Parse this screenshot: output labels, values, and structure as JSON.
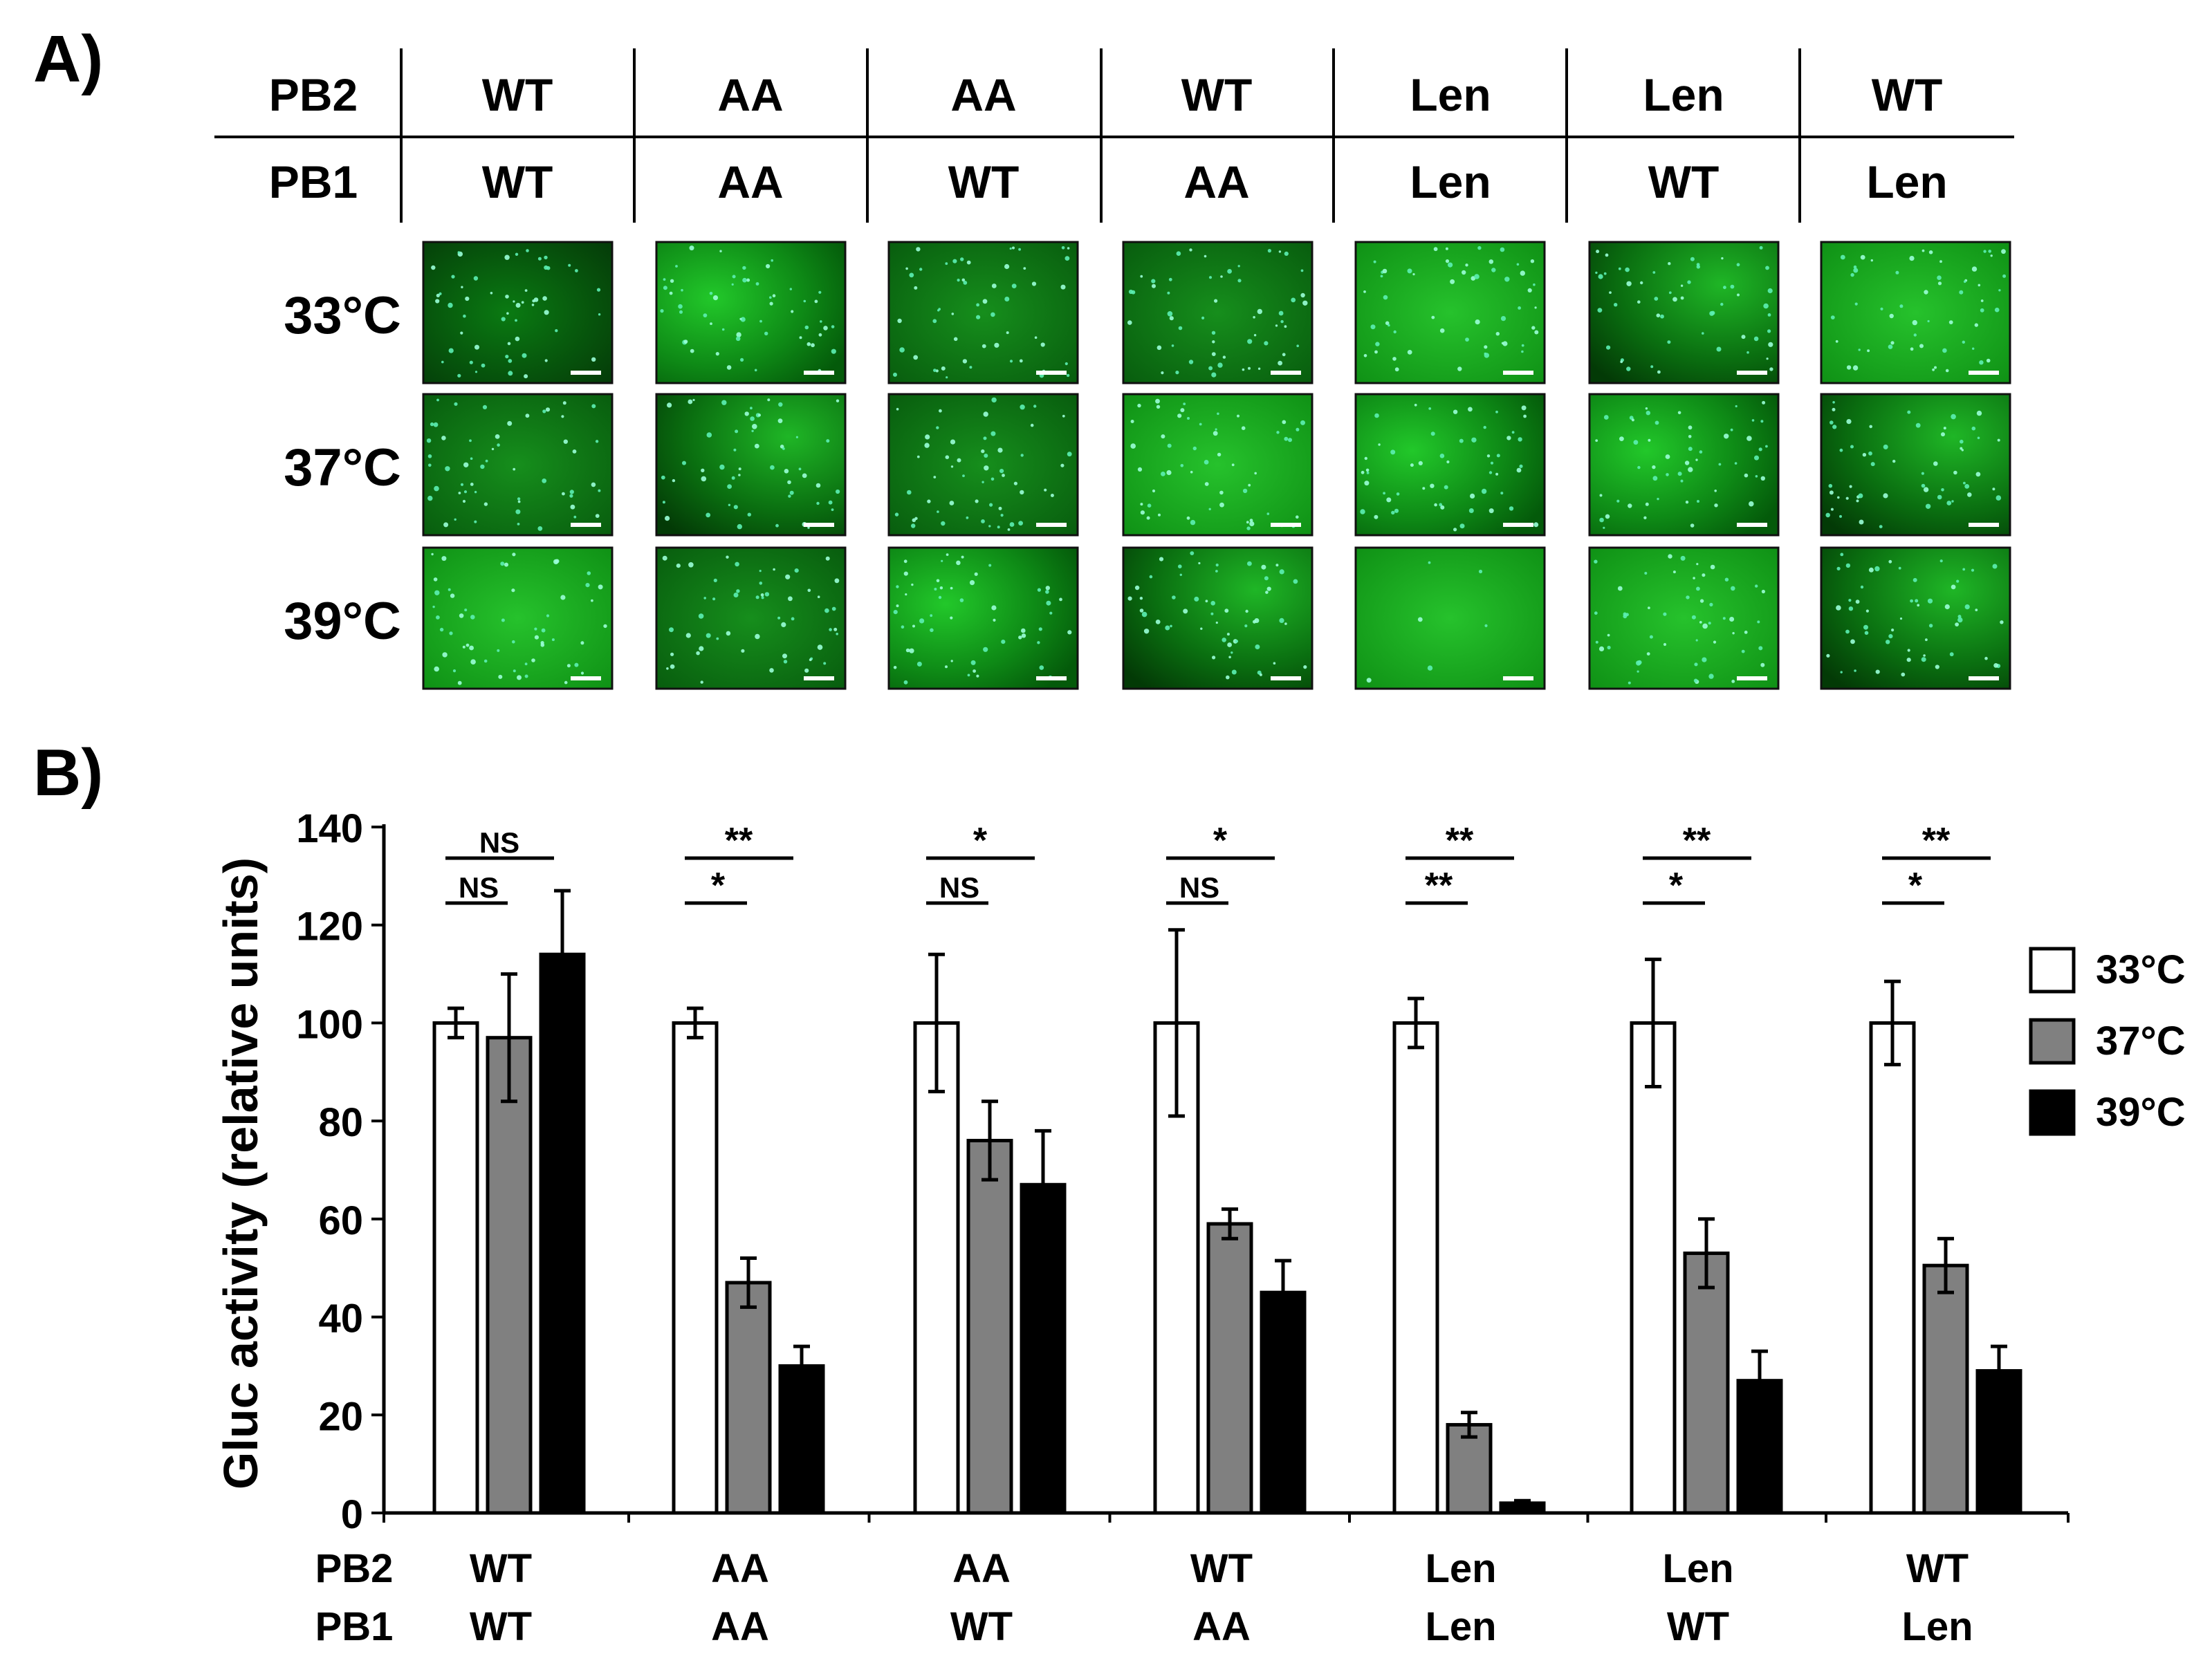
{
  "panel_a": {
    "label": "A)",
    "row_labels": {
      "pb2": "PB2",
      "pb1": "PB1"
    },
    "columns": [
      {
        "pb2": "WT",
        "pb1": "WT"
      },
      {
        "pb2": "AA",
        "pb1": "AA"
      },
      {
        "pb2": "AA",
        "pb1": "WT"
      },
      {
        "pb2": "WT",
        "pb1": "AA"
      },
      {
        "pb2": "Len",
        "pb1": "Len"
      },
      {
        "pb2": "Len",
        "pb1": "WT"
      },
      {
        "pb2": "WT",
        "pb1": "Len"
      }
    ],
    "temperatures": [
      "33°C",
      "37°C",
      "39°C"
    ]
  },
  "panel_b": {
    "label": "B)"
  },
  "chart_data": {
    "type": "bar",
    "ylabel": "Gluc activity (relative units)",
    "xlabel": "",
    "ylim": [
      0,
      140
    ],
    "yticks": [
      0,
      20,
      40,
      60,
      80,
      100,
      120,
      140
    ],
    "row_labels": [
      "PB2",
      "PB1"
    ],
    "categories": [
      {
        "pb2": "WT",
        "pb1": "WT"
      },
      {
        "pb2": "AA",
        "pb1": "AA"
      },
      {
        "pb2": "AA",
        "pb1": "WT"
      },
      {
        "pb2": "WT",
        "pb1": "AA"
      },
      {
        "pb2": "Len",
        "pb1": "Len"
      },
      {
        "pb2": "Len",
        "pb1": "WT"
      },
      {
        "pb2": "WT",
        "pb1": "Len"
      }
    ],
    "series": [
      {
        "name": "33°C",
        "color": "#ffffff",
        "values": [
          100,
          100,
          100,
          100,
          100,
          100,
          100
        ],
        "errors": [
          3,
          3,
          14,
          19,
          5,
          13,
          8.5
        ]
      },
      {
        "name": "37°C",
        "color": "#808080",
        "values": [
          97,
          47,
          76,
          59,
          18,
          53,
          50.5
        ],
        "errors": [
          13,
          5,
          8,
          3,
          2.5,
          7,
          5.5
        ]
      },
      {
        "name": "39°C",
        "color": "#000000",
        "values": [
          114,
          30,
          67,
          45,
          2,
          27,
          29
        ],
        "errors": [
          13,
          4,
          11,
          6.5,
          0.5,
          6,
          5
        ]
      }
    ],
    "significance": [
      {
        "upper": "NS",
        "lower": "NS"
      },
      {
        "upper": "**",
        "lower": "*"
      },
      {
        "upper": "*",
        "lower": "NS"
      },
      {
        "upper": "*",
        "lower": "NS"
      },
      {
        "upper": "**",
        "lower": "**"
      },
      {
        "upper": "**",
        "lower": "*"
      },
      {
        "upper": "**",
        "lower": "*"
      }
    ],
    "legend": {
      "position": "right",
      "entries": [
        "33°C",
        "37°C",
        "39°C"
      ]
    }
  }
}
